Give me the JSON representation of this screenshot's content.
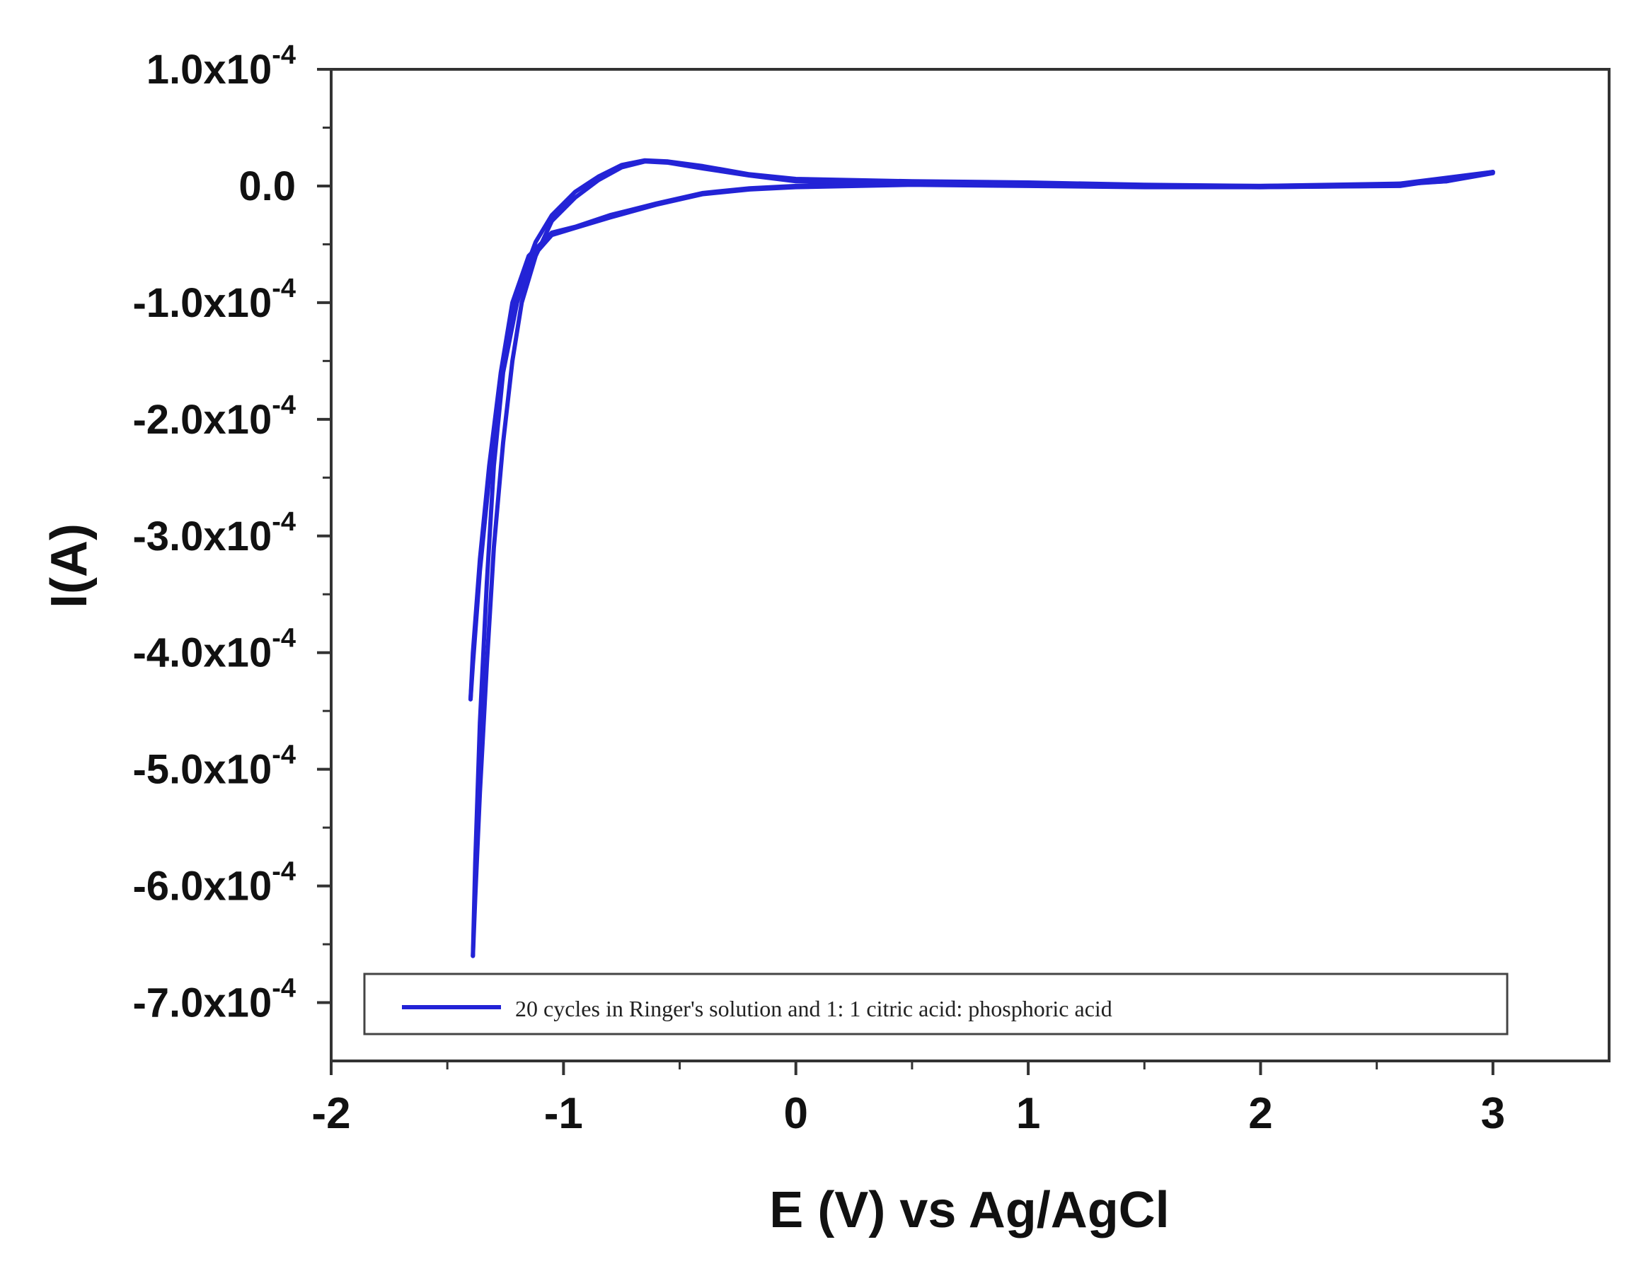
{
  "chart_data": {
    "type": "line",
    "title": "",
    "xlabel": "E (V) vs Ag/AgCl",
    "ylabel": "I(A)",
    "xlim": [
      -2,
      3.5
    ],
    "ylim": [
      -0.00075,
      0.0001
    ],
    "x_ticks": [
      -2,
      -1,
      0,
      1,
      2,
      3
    ],
    "x_tick_labels": [
      "-2",
      "-1",
      "0",
      "1",
      "2",
      "3"
    ],
    "y_ticks": [
      0.0001,
      0,
      -0.0001,
      -0.0002,
      -0.0003,
      -0.0004,
      -0.0005,
      -0.0006,
      -0.0007
    ],
    "y_tick_labels": [
      {
        "mantissa": "1.0x10",
        "exp": "-4"
      },
      {
        "mantissa": "0.0",
        "exp": ""
      },
      {
        "mantissa": "-1.0x10",
        "exp": "-4"
      },
      {
        "mantissa": "-2.0x10",
        "exp": "-4"
      },
      {
        "mantissa": "-3.0x10",
        "exp": "-4"
      },
      {
        "mantissa": "-4.0x10",
        "exp": "-4"
      },
      {
        "mantissa": "-5.0x10",
        "exp": "-4"
      },
      {
        "mantissa": "-6.0x10",
        "exp": "-4"
      },
      {
        "mantissa": "-7.0x10",
        "exp": "-4"
      }
    ],
    "grid": false,
    "legend_position": "bottom",
    "series": [
      {
        "name": "20 cycles in Ringer's solution and 1: 1 citric acid: phosphoric acid",
        "color": "#2323d6",
        "paths": [
          [
            [
              3.0,
              1.2e-05
            ],
            [
              2.6,
              2e-06
            ],
            [
              2.0,
              0.0
            ],
            [
              1.5,
              1e-06
            ],
            [
              1.0,
              3e-06
            ],
            [
              0.5,
              4e-06
            ],
            [
              0.0,
              6e-06
            ],
            [
              -0.2,
              1e-05
            ],
            [
              -0.4,
              1.7e-05
            ],
            [
              -0.55,
              2.1e-05
            ],
            [
              -0.65,
              2.2e-05
            ],
            [
              -0.75,
              1.8e-05
            ],
            [
              -0.85,
              8e-06
            ],
            [
              -0.95,
              -5e-06
            ],
            [
              -1.05,
              -2.5e-05
            ],
            [
              -1.12,
              -4.8e-05
            ],
            [
              -1.18,
              -8e-05
            ],
            [
              -1.23,
              -0.00012
            ],
            [
              -1.28,
              -0.00018
            ],
            [
              -1.32,
              -0.00025
            ],
            [
              -1.36,
              -0.00033
            ],
            [
              -1.39,
              -0.00041
            ],
            [
              -1.4,
              -0.00044
            ]
          ],
          [
            [
              -1.4,
              -0.00044
            ],
            [
              -1.39,
              -0.0004
            ],
            [
              -1.36,
              -0.00032
            ],
            [
              -1.32,
              -0.00024
            ],
            [
              -1.27,
              -0.00016
            ],
            [
              -1.22,
              -0.0001
            ],
            [
              -1.15,
              -6e-05
            ],
            [
              -1.05,
              -4e-05
            ],
            [
              -0.95,
              -3.5e-05
            ],
            [
              -0.8,
              -2.5e-05
            ],
            [
              -0.6,
              -1.5e-05
            ],
            [
              -0.4,
              -6e-06
            ],
            [
              -0.2,
              -2e-06
            ],
            [
              0.0,
              0.0
            ],
            [
              0.5,
              2e-06
            ],
            [
              1.0,
              1e-06
            ],
            [
              1.5,
              0.0
            ],
            [
              2.0,
              0.0
            ],
            [
              2.5,
              1e-06
            ],
            [
              2.8,
              4e-06
            ],
            [
              3.0,
              1.2e-05
            ]
          ],
          [
            [
              3.0,
              1.2e-05
            ],
            [
              2.6,
              0.0
            ],
            [
              2.0,
              -1e-06
            ],
            [
              1.5,
              0.0
            ],
            [
              1.0,
              2e-06
            ],
            [
              0.5,
              3e-06
            ],
            [
              0.0,
              4e-06
            ],
            [
              -0.2,
              9e-06
            ],
            [
              -0.4,
              1.5e-05
            ],
            [
              -0.55,
              2e-05
            ],
            [
              -0.65,
              2.1e-05
            ],
            [
              -0.75,
              1.6e-05
            ],
            [
              -0.85,
              5e-06
            ],
            [
              -0.95,
              -1e-05
            ],
            [
              -1.05,
              -3e-05
            ],
            [
              -1.12,
              -6e-05
            ],
            [
              -1.18,
              -0.0001
            ],
            [
              -1.22,
              -0.00015
            ],
            [
              -1.26,
              -0.00022
            ],
            [
              -1.3,
              -0.00031
            ],
            [
              -1.33,
              -0.00041
            ],
            [
              -1.36,
              -0.00052
            ],
            [
              -1.38,
              -0.00061
            ],
            [
              -1.39,
              -0.00066
            ]
          ],
          [
            [
              -1.39,
              -0.00066
            ],
            [
              -1.38,
              -0.00058
            ],
            [
              -1.36,
              -0.00046
            ],
            [
              -1.33,
              -0.00034
            ],
            [
              -1.3,
              -0.00024
            ],
            [
              -1.26,
              -0.00016
            ],
            [
              -1.2,
              -0.0001
            ],
            [
              -1.13,
              -6e-05
            ],
            [
              -1.05,
              -4.2e-05
            ],
            [
              -0.95,
              -3.6e-05
            ],
            [
              -0.8,
              -2.7e-05
            ],
            [
              -0.6,
              -1.6e-05
            ],
            [
              -0.4,
              -7e-06
            ],
            [
              -0.2,
              -3e-06
            ],
            [
              0.0,
              -1e-06
            ],
            [
              0.5,
              1e-06
            ],
            [
              1.0,
              0.0
            ],
            [
              1.5,
              -1e-06
            ],
            [
              2.0,
              -1e-06
            ],
            [
              2.5,
              0.0
            ],
            [
              2.8,
              4e-06
            ],
            [
              3.0,
              1.1e-05
            ]
          ]
        ]
      }
    ]
  }
}
